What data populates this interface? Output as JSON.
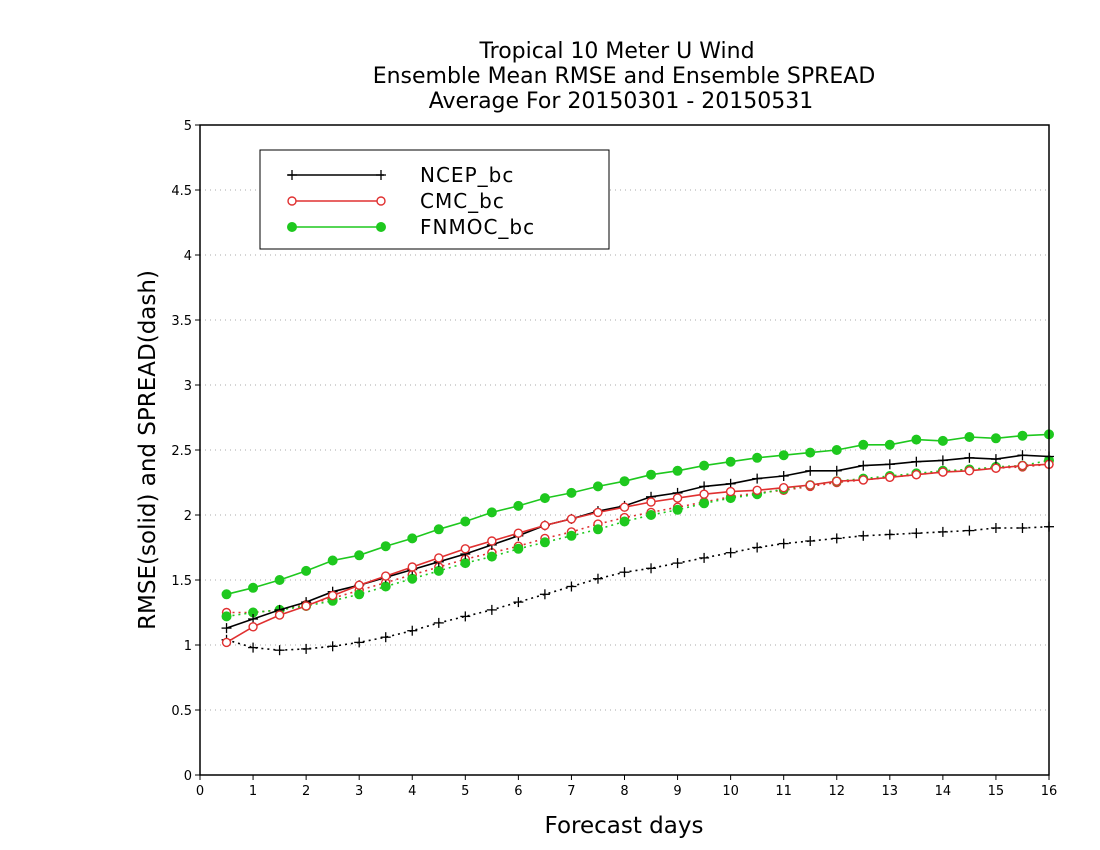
{
  "chart_data": {
    "type": "line",
    "title_lines": [
      "Tropical 10 Meter U Wind",
      "Ensemble Mean RMSE and Ensemble SPREAD",
      "Average For 20150301 - 20150531"
    ],
    "xlabel": "Forecast days",
    "ylabel": "RMSE(solid) and SPREAD(dash)",
    "xlim": [
      0,
      16
    ],
    "ylim": [
      0,
      5
    ],
    "x_ticks": [
      "0",
      "1",
      "2",
      "3",
      "4",
      "5",
      "6",
      "7",
      "8",
      "9",
      "10",
      "11",
      "12",
      "13",
      "14",
      "15",
      "16"
    ],
    "y_ticks": [
      "0",
      "0.5",
      "1",
      "1.5",
      "2",
      "2.5",
      "3",
      "3.5",
      "4",
      "4.5",
      "5"
    ],
    "y_tick_values": [
      0,
      0.5,
      1,
      1.5,
      2,
      2.5,
      3,
      3.5,
      4,
      4.5,
      5
    ],
    "grid": "horizontal-dotted",
    "legend_position": "top-left",
    "x": [
      0.5,
      1,
      1.5,
      2,
      2.5,
      3,
      3.5,
      4,
      4.5,
      5,
      5.5,
      6,
      6.5,
      7,
      7.5,
      8,
      8.5,
      9,
      9.5,
      10,
      10.5,
      11,
      11.5,
      12,
      12.5,
      13,
      13.5,
      14,
      14.5,
      15,
      15.5,
      16
    ],
    "series": [
      {
        "name": "NCEP_bc",
        "color": "#000000",
        "marker": "plus",
        "rmse": [
          1.13,
          1.2,
          1.27,
          1.33,
          1.41,
          1.46,
          1.52,
          1.58,
          1.64,
          1.7,
          1.77,
          1.84,
          1.92,
          1.97,
          2.03,
          2.07,
          2.14,
          2.17,
          2.22,
          2.24,
          2.28,
          2.3,
          2.34,
          2.34,
          2.38,
          2.39,
          2.41,
          2.42,
          2.44,
          2.43,
          2.46,
          2.45
        ],
        "spread": [
          1.04,
          0.98,
          0.96,
          0.97,
          0.99,
          1.02,
          1.06,
          1.11,
          1.17,
          1.22,
          1.27,
          1.33,
          1.39,
          1.45,
          1.51,
          1.56,
          1.59,
          1.63,
          1.67,
          1.71,
          1.75,
          1.78,
          1.8,
          1.82,
          1.84,
          1.85,
          1.86,
          1.87,
          1.88,
          1.9,
          1.9,
          1.91
        ]
      },
      {
        "name": "CMC_bc",
        "color": "#e03030",
        "marker": "open-circle",
        "rmse": [
          1.02,
          1.14,
          1.23,
          1.3,
          1.38,
          1.46,
          1.53,
          1.6,
          1.67,
          1.74,
          1.8,
          1.86,
          1.92,
          1.97,
          2.02,
          2.06,
          2.1,
          2.13,
          2.16,
          2.18,
          2.19,
          2.21,
          2.23,
          2.26,
          2.27,
          2.29,
          2.31,
          2.33,
          2.34,
          2.36,
          2.38,
          2.39
        ],
        "spread": [
          1.25,
          1.25,
          1.27,
          1.31,
          1.36,
          1.42,
          1.48,
          1.54,
          1.6,
          1.66,
          1.71,
          1.76,
          1.82,
          1.87,
          1.93,
          1.98,
          2.02,
          2.06,
          2.1,
          2.14,
          2.17,
          2.19,
          2.22,
          2.25,
          2.27,
          2.29,
          2.31,
          2.33,
          2.35,
          2.36,
          2.37,
          2.39
        ]
      },
      {
        "name": "FNMOC_bc",
        "color": "#1ec81e",
        "marker": "filled-circle",
        "rmse": [
          1.39,
          1.44,
          1.5,
          1.57,
          1.65,
          1.69,
          1.76,
          1.82,
          1.89,
          1.95,
          2.02,
          2.07,
          2.13,
          2.17,
          2.22,
          2.26,
          2.31,
          2.34,
          2.38,
          2.41,
          2.44,
          2.46,
          2.48,
          2.5,
          2.54,
          2.54,
          2.58,
          2.57,
          2.6,
          2.59,
          2.61,
          2.62
        ],
        "spread": [
          1.22,
          1.25,
          1.27,
          1.3,
          1.34,
          1.39,
          1.45,
          1.51,
          1.57,
          1.63,
          1.68,
          1.74,
          1.79,
          1.84,
          1.89,
          1.95,
          2.0,
          2.04,
          2.09,
          2.13,
          2.16,
          2.2,
          2.23,
          2.26,
          2.28,
          2.3,
          2.32,
          2.34,
          2.35,
          2.37,
          2.38,
          2.42
        ]
      }
    ]
  }
}
